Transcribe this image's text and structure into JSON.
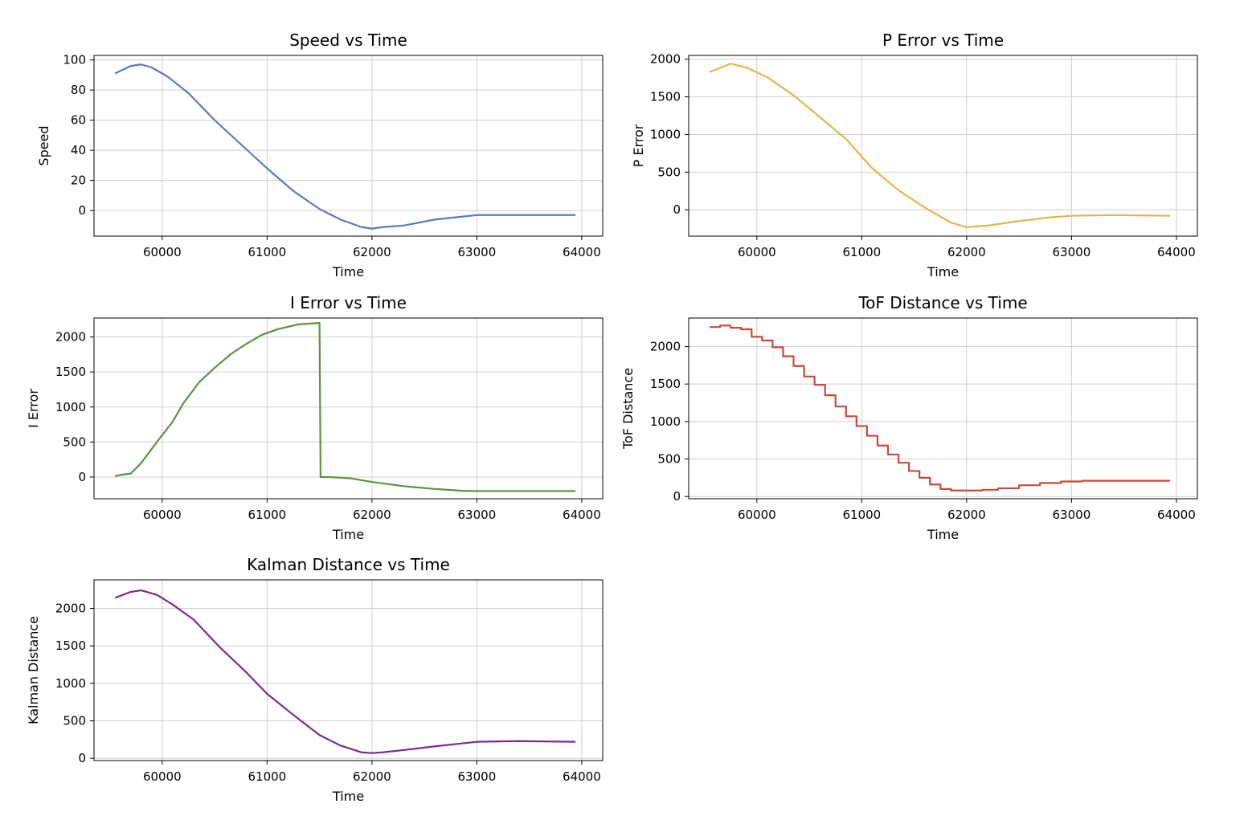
{
  "chart_data": [
    {
      "type": "line",
      "title": "Speed vs Time",
      "xlabel": "Time",
      "ylabel": "Speed",
      "color": "#5a7bbf",
      "grid": true,
      "xlim": [
        59350,
        64200
      ],
      "ylim": [
        -17,
        103
      ],
      "xticks": [
        60000,
        61000,
        62000,
        63000,
        64000
      ],
      "yticks": [
        0,
        20,
        40,
        60,
        80,
        100
      ],
      "x": [
        59550,
        59700,
        59800,
        59900,
        60050,
        60250,
        60500,
        60750,
        61000,
        61250,
        61500,
        61700,
        61900,
        62000,
        62100,
        62300,
        62600,
        63000,
        63400,
        63700,
        63940
      ],
      "y": [
        91,
        96,
        97,
        95,
        89,
        78,
        60,
        44,
        28,
        13,
        1,
        -6,
        -11,
        -12,
        -11,
        -10,
        -6,
        -3,
        -3,
        -3,
        -3
      ]
    },
    {
      "type": "line",
      "title": "P Error vs Time",
      "xlabel": "Time",
      "ylabel": "P Error",
      "color": "#e6b44c",
      "grid": true,
      "xlim": [
        59350,
        64200
      ],
      "ylim": [
        -350,
        2050
      ],
      "xticks": [
        60000,
        61000,
        62000,
        63000,
        64000
      ],
      "yticks": [
        0,
        500,
        1000,
        1500,
        2000
      ],
      "x": [
        59550,
        59750,
        59900,
        60100,
        60350,
        60600,
        60850,
        61100,
        61350,
        61600,
        61850,
        62000,
        62200,
        62500,
        62800,
        63000,
        63400,
        63940
      ],
      "y": [
        1830,
        1940,
        1890,
        1760,
        1520,
        1230,
        940,
        550,
        260,
        30,
        -170,
        -230,
        -210,
        -150,
        -100,
        -80,
        -70,
        -80
      ]
    },
    {
      "type": "line",
      "title": "I Error vs Time",
      "xlabel": "Time",
      "ylabel": "I Error",
      "color": "#5a9440",
      "grid": true,
      "xlim": [
        59350,
        64200
      ],
      "ylim": [
        -310,
        2270
      ],
      "xticks": [
        60000,
        61000,
        62000,
        63000,
        64000
      ],
      "yticks": [
        0,
        500,
        1000,
        1500,
        2000
      ],
      "x": [
        59550,
        59600,
        59700,
        59800,
        59900,
        60000,
        60100,
        60200,
        60350,
        60500,
        60650,
        60800,
        60950,
        61100,
        61300,
        61500,
        61510,
        61600,
        61800,
        62000,
        62300,
        62600,
        62900,
        63200,
        63600,
        63940
      ],
      "y": [
        10,
        30,
        50,
        200,
        400,
        600,
        790,
        1050,
        1350,
        1560,
        1750,
        1900,
        2030,
        2110,
        2180,
        2200,
        0,
        0,
        -20,
        -70,
        -130,
        -170,
        -200,
        -200,
        -200,
        -200
      ]
    },
    {
      "type": "line",
      "title": "ToF Distance vs Time",
      "xlabel": "Time",
      "ylabel": "ToF Distance",
      "color": "#c84a3a",
      "grid": true,
      "xlim": [
        59350,
        64200
      ],
      "ylim": [
        -30,
        2380
      ],
      "xticks": [
        60000,
        61000,
        62000,
        63000,
        64000
      ],
      "yticks": [
        0,
        500,
        1000,
        1500,
        2000
      ],
      "step": true,
      "x": [
        59550,
        59650,
        59750,
        59850,
        59950,
        60050,
        60150,
        60250,
        60350,
        60450,
        60550,
        60650,
        60750,
        60850,
        60950,
        61050,
        61150,
        61250,
        61350,
        61450,
        61550,
        61650,
        61750,
        61850,
        62000,
        62150,
        62300,
        62500,
        62700,
        62900,
        63100,
        63400,
        63700,
        63940
      ],
      "y": [
        2260,
        2280,
        2250,
        2230,
        2130,
        2080,
        1990,
        1870,
        1740,
        1600,
        1490,
        1350,
        1200,
        1070,
        940,
        810,
        680,
        560,
        450,
        340,
        250,
        160,
        100,
        80,
        80,
        90,
        110,
        150,
        180,
        200,
        210,
        210,
        210,
        210
      ]
    },
    {
      "type": "line",
      "title": "Kalman Distance vs Time",
      "xlabel": "Time",
      "ylabel": "Kalman Distance",
      "color": "#7a2d8c",
      "grid": true,
      "xlim": [
        59350,
        64200
      ],
      "ylim": [
        -30,
        2380
      ],
      "xticks": [
        60000,
        61000,
        62000,
        63000,
        64000
      ],
      "yticks": [
        0,
        500,
        1000,
        1500,
        2000
      ],
      "x": [
        59550,
        59700,
        59800,
        59950,
        60100,
        60300,
        60550,
        60800,
        61000,
        61250,
        61500,
        61700,
        61900,
        62000,
        62100,
        62300,
        62600,
        63000,
        63400,
        63940
      ],
      "y": [
        2140,
        2220,
        2240,
        2180,
        2050,
        1850,
        1480,
        1150,
        860,
        580,
        310,
        170,
        80,
        70,
        80,
        110,
        160,
        220,
        230,
        220
      ]
    }
  ]
}
